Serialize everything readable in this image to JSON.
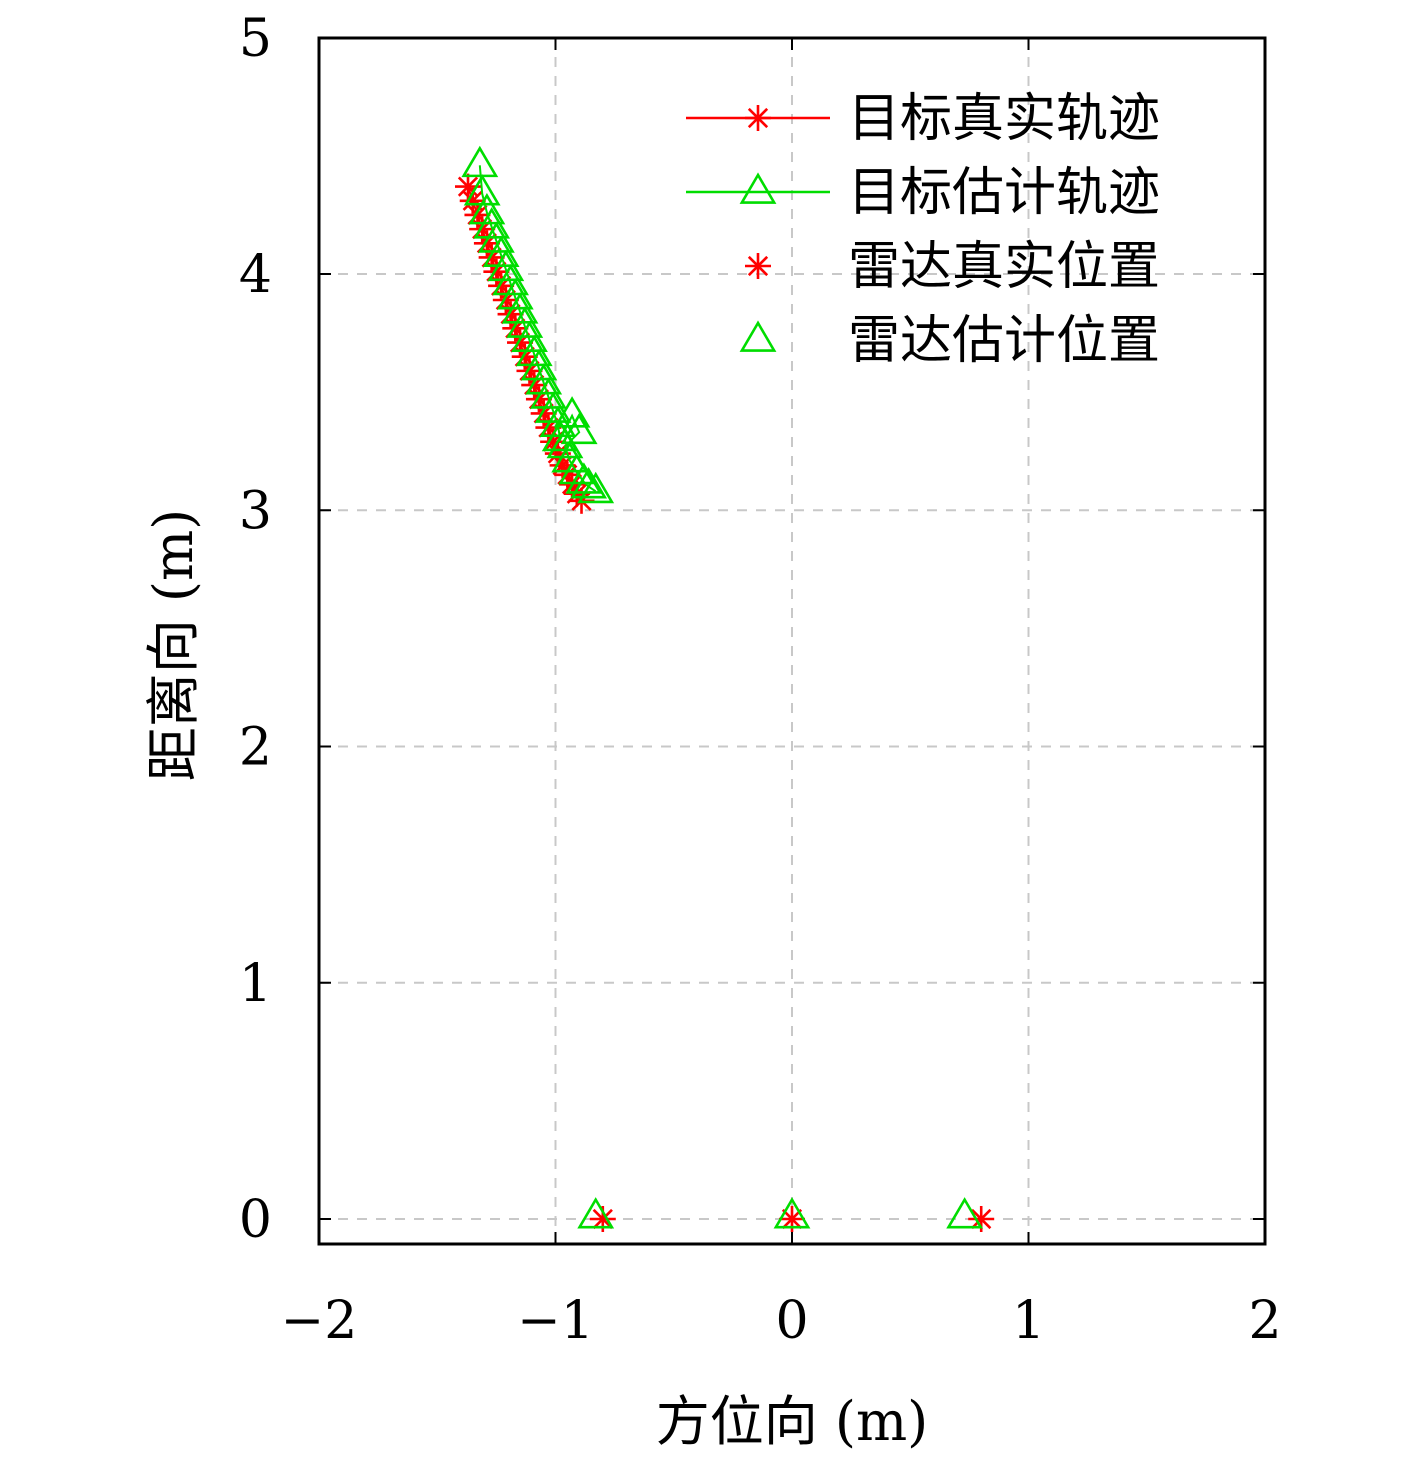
{
  "chart_data": {
    "type": "scatter",
    "xlabel": "方位向 (m)",
    "ylabel": "距离向 (m)",
    "xlim": [
      -2,
      2
    ],
    "ylim": [
      -0.1,
      5
    ],
    "xticks": [
      -2,
      -1,
      0,
      1,
      2
    ],
    "xtick_labels": [
      "−2",
      "−1",
      "0",
      "1",
      "2"
    ],
    "yticks": [
      0,
      1,
      2,
      3,
      4,
      5
    ],
    "ytick_labels": [
      "0",
      "1",
      "2",
      "3",
      "4",
      "5"
    ],
    "grid": true,
    "legend_position": "top-right",
    "colors": {
      "red": "#ff0000",
      "green": "#00dd00"
    },
    "series": [
      {
        "name": "目标真实轨迹",
        "marker": "asterisk",
        "line": true,
        "color": "#ff0000",
        "x": [
          -1.37,
          -1.35,
          -1.33,
          -1.31,
          -1.29,
          -1.27,
          -1.25,
          -1.23,
          -1.21,
          -1.19,
          -1.17,
          -1.15,
          -1.13,
          -1.11,
          -1.09,
          -1.07,
          -1.05,
          -1.03,
          -1.01,
          -0.99,
          -0.97,
          -0.95,
          -0.93,
          -0.91,
          -0.89
        ],
        "y": [
          4.37,
          4.31,
          4.25,
          4.19,
          4.13,
          4.07,
          4.01,
          3.95,
          3.89,
          3.83,
          3.77,
          3.71,
          3.65,
          3.59,
          3.53,
          3.47,
          3.41,
          3.35,
          3.29,
          3.24,
          3.19,
          3.15,
          3.11,
          3.07,
          3.04
        ]
      },
      {
        "name": "目标估计轨迹",
        "marker": "triangle",
        "line": true,
        "color": "#00dd00",
        "x": [
          -1.32,
          -1.31,
          -1.29,
          -1.27,
          -1.25,
          -1.23,
          -1.21,
          -1.19,
          -1.17,
          -1.15,
          -1.13,
          -1.11,
          -1.09,
          -1.07,
          -1.05,
          -1.03,
          -1.01,
          -0.99,
          -0.98,
          -0.93,
          -0.9,
          -0.96,
          -0.94,
          -0.91,
          -0.88,
          -0.86,
          -0.83
        ],
        "y": [
          4.46,
          4.34,
          4.26,
          4.2,
          4.14,
          4.08,
          4.02,
          3.96,
          3.9,
          3.84,
          3.78,
          3.72,
          3.66,
          3.6,
          3.54,
          3.48,
          3.42,
          3.36,
          3.3,
          3.4,
          3.33,
          3.27,
          3.21,
          3.16,
          3.12,
          3.1,
          3.08
        ]
      },
      {
        "name": "雷达真实位置",
        "marker": "asterisk",
        "line": false,
        "color": "#ff0000",
        "x": [
          -0.8,
          0.0,
          0.8
        ],
        "y": [
          0.0,
          0.0,
          0.0
        ]
      },
      {
        "name": "雷达估计位置",
        "marker": "triangle",
        "line": false,
        "color": "#00dd00",
        "x": [
          -0.83,
          0.0,
          0.73
        ],
        "y": [
          0.01,
          0.01,
          0.01
        ]
      }
    ]
  }
}
